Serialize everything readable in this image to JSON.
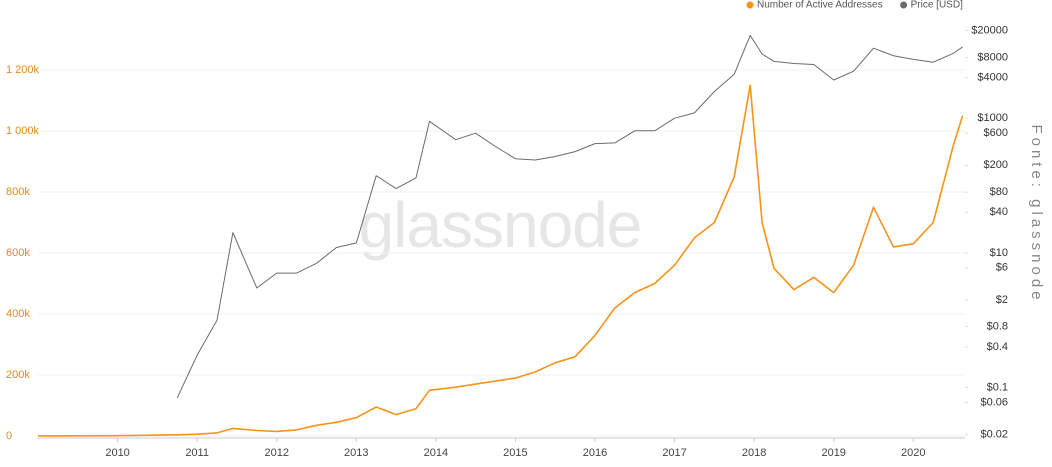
{
  "chart_data": {
    "type": "line",
    "watermark": "glassnode",
    "source": "Fonte: glassnode",
    "x": [
      2009,
      2009.5,
      2010,
      2010.5,
      2010.75,
      2011,
      2011.25,
      2011.45,
      2011.75,
      2012,
      2012.25,
      2012.5,
      2012.75,
      2013,
      2013.25,
      2013.5,
      2013.75,
      2013.92,
      2014.25,
      2014.5,
      2014.75,
      2015,
      2015.25,
      2015.5,
      2015.75,
      2016,
      2016.25,
      2016.5,
      2016.75,
      2017,
      2017.25,
      2017.5,
      2017.75,
      2017.95,
      2018.1,
      2018.25,
      2018.5,
      2018.75,
      2019,
      2019.25,
      2019.5,
      2019.75,
      2020,
      2020.25,
      2020.5,
      2020.62
    ],
    "series": [
      {
        "name": "Number of Active Addresses",
        "color": "#f7931a",
        "values": [
          200,
          500,
          1000,
          3000,
          4000,
          6000,
          10000,
          25000,
          18000,
          15000,
          20000,
          35000,
          45000,
          60000,
          95000,
          70000,
          90000,
          150000,
          160000,
          170000,
          180000,
          190000,
          210000,
          240000,
          260000,
          330000,
          420000,
          470000,
          500000,
          560000,
          650000,
          700000,
          850000,
          1150000,
          700000,
          550000,
          480000,
          520000,
          470000,
          560000,
          750000,
          620000,
          630000,
          700000,
          950000,
          1050000
        ]
      },
      {
        "name": "Price [USD]",
        "color": "#6b6b6b",
        "axis": "y2",
        "values": [
          null,
          null,
          null,
          null,
          0.07,
          0.3,
          1,
          20,
          3,
          5,
          5,
          7,
          12,
          14,
          140,
          90,
          130,
          900,
          480,
          600,
          380,
          250,
          240,
          270,
          320,
          420,
          430,
          650,
          650,
          1000,
          1200,
          2500,
          4500,
          17000,
          9000,
          7000,
          6500,
          6300,
          3700,
          5000,
          11000,
          8500,
          7500,
          6800,
          9200,
          11500
        ]
      }
    ],
    "xlim": [
      2009,
      2020.65
    ],
    "xticks": [
      2010,
      2011,
      2012,
      2013,
      2014,
      2015,
      2016,
      2017,
      2018,
      2019,
      2020
    ],
    "ylim": [
      0,
      1400000
    ],
    "yticks": [
      0,
      {
        "value": 200000,
        "label": "200k"
      },
      {
        "value": 400000,
        "label": "400k"
      },
      {
        "value": 600000,
        "label": "600k"
      },
      {
        "value": 800000,
        "label": "800k"
      },
      {
        "value": 1000000,
        "label": "1 000k"
      },
      {
        "value": 1200000,
        "label": "1 200k"
      }
    ],
    "y2lim": [
      0.019,
      42000
    ],
    "y2log": true,
    "y2ticks": [
      {
        "value": 0.02,
        "label": "$0.02"
      },
      {
        "value": 0.06,
        "label": "$0.06"
      },
      {
        "value": 0.1,
        "label": "$0.1"
      },
      {
        "value": 0.4,
        "label": "$0.4"
      },
      {
        "value": 0.8,
        "label": "$0.8"
      },
      {
        "value": 2,
        "label": "$2"
      },
      {
        "value": 6,
        "label": "$6"
      },
      {
        "value": 10,
        "label": "$10"
      },
      {
        "value": 40,
        "label": "$40"
      },
      {
        "value": 80,
        "label": "$80"
      },
      {
        "value": 200,
        "label": "$200"
      },
      {
        "value": 600,
        "label": "$600"
      },
      {
        "value": 1000,
        "label": "$1000"
      },
      {
        "value": 4000,
        "label": "$4000"
      },
      {
        "value": 8000,
        "label": "$8000"
      },
      {
        "value": 20000,
        "label": "$20000"
      }
    ],
    "grid": true,
    "legend": "top-right"
  }
}
